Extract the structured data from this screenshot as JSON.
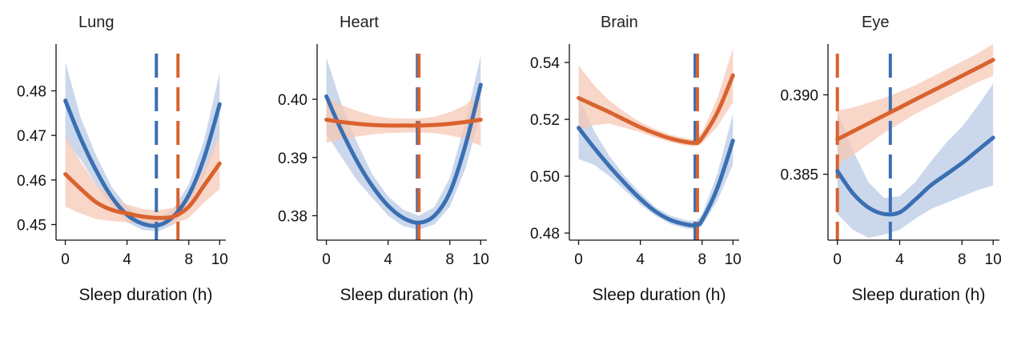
{
  "colors": {
    "blue": "#3a6fb2",
    "orange": "#d9622e",
    "blue_band": "#b9cbe6",
    "orange_band": "#f6c8b6",
    "axis": "#111111"
  },
  "chart_data": [
    {
      "type": "line",
      "title": "Lung",
      "xlabel": "Sleep duration (h)",
      "xlim": [
        -0.6,
        10.4
      ],
      "ylim": [
        0.4465,
        0.4905
      ],
      "xticks": [
        0,
        4,
        8,
        10
      ],
      "yticks": [
        0.45,
        0.46,
        0.47,
        0.48
      ],
      "ytick_labels": [
        "0.45",
        "0.46",
        "0.47",
        "0.48"
      ],
      "x": [
        0,
        1,
        2,
        3,
        4,
        5,
        6,
        7,
        8,
        9,
        10
      ],
      "series": [
        {
          "color": "blue",
          "values": [
            0.4778,
            0.4693,
            0.4621,
            0.4562,
            0.4522,
            0.4502,
            0.4498,
            0.4518,
            0.4566,
            0.465,
            0.477
          ],
          "upper": [
            0.4865,
            0.474,
            0.4655,
            0.4585,
            0.454,
            0.4515,
            0.4512,
            0.4535,
            0.459,
            0.469,
            0.484
          ],
          "lower": [
            0.469,
            0.4645,
            0.459,
            0.454,
            0.4505,
            0.4488,
            0.4484,
            0.45,
            0.4542,
            0.461,
            0.47
          ],
          "vline": 5.9
        },
        {
          "color": "orange",
          "values": [
            0.4613,
            0.458,
            0.455,
            0.4533,
            0.4525,
            0.4518,
            0.4515,
            0.4518,
            0.454,
            0.4588,
            0.4637
          ],
          "upper": [
            0.47,
            0.464,
            0.459,
            0.456,
            0.4545,
            0.4535,
            0.4532,
            0.4538,
            0.4565,
            0.4625,
            0.47
          ],
          "lower": [
            0.454,
            0.4525,
            0.4512,
            0.4508,
            0.4505,
            0.4502,
            0.45,
            0.45,
            0.4515,
            0.455,
            0.458
          ],
          "vline": 7.3
        }
      ]
    },
    {
      "type": "line",
      "title": "Heart",
      "xlabel": "Sleep duration (h)",
      "xlim": [
        -0.6,
        10.4
      ],
      "ylim": [
        0.3758,
        0.4095
      ],
      "xticks": [
        0,
        4,
        8,
        10
      ],
      "yticks": [
        0.38,
        0.39,
        0.4
      ],
      "ytick_labels": [
        "0.38",
        "0.39",
        "0.40"
      ],
      "x": [
        0,
        1,
        2,
        3,
        4,
        5,
        6,
        7,
        8,
        9,
        10
      ],
      "series": [
        {
          "color": "blue",
          "values": [
            0.4005,
            0.3945,
            0.3893,
            0.385,
            0.3817,
            0.3796,
            0.3788,
            0.38,
            0.384,
            0.392,
            0.4025
          ],
          "upper": [
            0.4072,
            0.399,
            0.3925,
            0.387,
            0.3833,
            0.381,
            0.38,
            0.3815,
            0.3865,
            0.396,
            0.4075
          ],
          "lower": [
            0.394,
            0.39,
            0.386,
            0.383,
            0.38,
            0.3782,
            0.3776,
            0.3785,
            0.3815,
            0.388,
            0.3975
          ],
          "vline": 5.9
        },
        {
          "color": "orange",
          "values": [
            0.3965,
            0.3961,
            0.3958,
            0.3956,
            0.3955,
            0.3955,
            0.3955,
            0.3956,
            0.3958,
            0.3961,
            0.3965
          ],
          "upper": [
            0.4005,
            0.399,
            0.398,
            0.3972,
            0.3968,
            0.3967,
            0.3967,
            0.397,
            0.3978,
            0.399,
            0.401
          ],
          "lower": [
            0.3925,
            0.3932,
            0.3936,
            0.394,
            0.3942,
            0.3943,
            0.3943,
            0.3942,
            0.3938,
            0.3932,
            0.392
          ],
          "vline": 6.0
        }
      ]
    },
    {
      "type": "line",
      "title": "Brain",
      "xlabel": "Sleep duration (h)",
      "xlim": [
        -0.6,
        10.4
      ],
      "ylim": [
        0.4775,
        0.5465
      ],
      "xticks": [
        0,
        4,
        8,
        10
      ],
      "yticks": [
        0.48,
        0.5,
        0.52,
        0.54
      ],
      "ytick_labels": [
        "0.48",
        "0.50",
        "0.52",
        "0.54"
      ],
      "x": [
        0,
        1,
        2,
        3,
        4,
        5,
        6,
        7,
        7.6,
        8,
        9,
        10
      ],
      "series": [
        {
          "color": "blue",
          "values": [
            0.517,
            0.51,
            0.5035,
            0.4975,
            0.492,
            0.4875,
            0.4845,
            0.483,
            0.4828,
            0.4845,
            0.496,
            0.5125
          ],
          "upper": [
            0.528,
            0.516,
            0.507,
            0.5,
            0.494,
            0.489,
            0.486,
            0.4845,
            0.4842,
            0.4865,
            0.501,
            0.522
          ],
          "lower": [
            0.506,
            0.504,
            0.5,
            0.495,
            0.49,
            0.486,
            0.483,
            0.4815,
            0.4813,
            0.4825,
            0.4915,
            0.504
          ],
          "vline": 7.55
        },
        {
          "color": "orange",
          "values": [
            0.5275,
            0.525,
            0.5225,
            0.5198,
            0.5172,
            0.515,
            0.5132,
            0.512,
            0.5118,
            0.5135,
            0.5225,
            0.5355
          ],
          "upper": [
            0.539,
            0.532,
            0.5265,
            0.5225,
            0.519,
            0.5165,
            0.5145,
            0.5133,
            0.513,
            0.5155,
            0.5275,
            0.545
          ],
          "lower": [
            0.516,
            0.518,
            0.5185,
            0.517,
            0.5155,
            0.5135,
            0.5119,
            0.5107,
            0.5105,
            0.5115,
            0.5175,
            0.526
          ],
          "vline": 7.7
        }
      ]
    },
    {
      "type": "line",
      "title": "Eye",
      "xlabel": "Sleep duration (h)",
      "xlim": [
        -0.6,
        10.4
      ],
      "ylim": [
        0.38085,
        0.3932
      ],
      "xticks": [
        0,
        4,
        8,
        10
      ],
      "yticks": [
        0.385,
        0.39
      ],
      "ytick_labels": [
        "0.385",
        "0.390"
      ],
      "x": [
        0,
        1,
        2,
        3,
        4,
        5,
        6,
        7,
        8,
        9,
        10
      ],
      "series": [
        {
          "color": "blue",
          "values": [
            0.3852,
            0.3838,
            0.3829,
            0.3825,
            0.3826,
            0.3834,
            0.3843,
            0.385,
            0.3857,
            0.3865,
            0.3873
          ],
          "upper": [
            0.389,
            0.3865,
            0.3845,
            0.3835,
            0.3836,
            0.3845,
            0.3858,
            0.387,
            0.388,
            0.3893,
            0.3907
          ],
          "lower": [
            0.3825,
            0.3815,
            0.381,
            0.3812,
            0.3815,
            0.3822,
            0.3828,
            0.3832,
            0.3836,
            0.384,
            0.3843
          ],
          "vline": 3.4
        },
        {
          "color": "orange",
          "values": [
            0.3872,
            0.3877,
            0.3882,
            0.3887,
            0.3892,
            0.3897,
            0.3902,
            0.3907,
            0.3912,
            0.3917,
            0.3922
          ],
          "upper": [
            0.389,
            0.3892,
            0.3895,
            0.3898,
            0.3902,
            0.3906,
            0.3911,
            0.3916,
            0.3921,
            0.3926,
            0.3932
          ],
          "lower": [
            0.3856,
            0.3862,
            0.3869,
            0.3876,
            0.3882,
            0.3888,
            0.3893,
            0.3898,
            0.3903,
            0.3908,
            0.3912
          ],
          "vline": 0.0
        }
      ]
    }
  ]
}
